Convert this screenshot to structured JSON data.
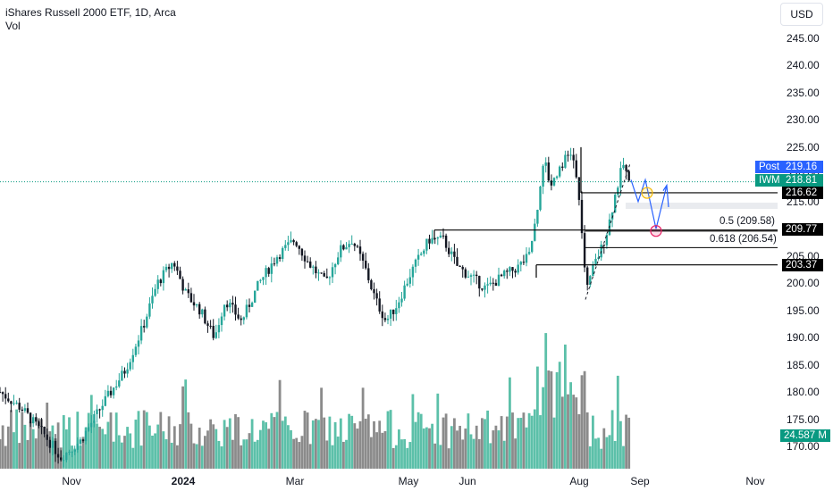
{
  "header": {
    "title": "iShares Russell 2000 ETF, 1D, Arca",
    "indicator": "Vol"
  },
  "currency_button": "USD",
  "yaxis": {
    "ticks": [
      "245.00",
      "240.00",
      "235.00",
      "230.00",
      "225.00",
      "220.00",
      "215.00",
      "210.00",
      "205.00",
      "200.00",
      "195.00",
      "190.00",
      "185.00",
      "180.00",
      "175.00",
      "170.00"
    ]
  },
  "xaxis": {
    "labels": [
      {
        "text": "Nov",
        "bold": false
      },
      {
        "text": "2024",
        "bold": true
      },
      {
        "text": "Mar",
        "bold": false
      },
      {
        "text": "May",
        "bold": false
      },
      {
        "text": "Jun",
        "bold": false
      },
      {
        "text": "Aug",
        "bold": false
      },
      {
        "text": "Sep",
        "bold": false
      },
      {
        "text": "Nov",
        "bold": false
      }
    ]
  },
  "price_tags": {
    "post_label": "Post",
    "post_value": "219.16",
    "ticker_label": "IWM",
    "ticker_value": "218.81",
    "level_1": "216.62",
    "level_2": "209.77",
    "level_3": "203.37",
    "volume": "24.587 M"
  },
  "fib_labels": {
    "fib_05": "0.5 (209.58)",
    "fib_0618": "0.618 (206.54)"
  },
  "colors": {
    "up": "#26a69a",
    "down": "#131722",
    "post": "#2962ff",
    "ticker": "#089981",
    "level": "#000000",
    "vol_up": "#5cc0a9",
    "vol_down": "#8b8b8b"
  },
  "chart_data": {
    "type": "candlestick",
    "title": "iShares Russell 2000 ETF, 1D, Arca",
    "ylim": [
      168,
      247
    ],
    "x_labels": [
      "Nov",
      "2024",
      "Mar",
      "May",
      "Jun",
      "Aug",
      "Sep",
      "Nov"
    ],
    "anchors": [
      {
        "t": 0,
        "v": 180
      },
      {
        "t": 12,
        "v": 177
      },
      {
        "t": 25,
        "v": 172
      },
      {
        "t": 34,
        "v": 168
      },
      {
        "t": 45,
        "v": 171
      },
      {
        "t": 58,
        "v": 178
      },
      {
        "t": 70,
        "v": 184
      },
      {
        "t": 80,
        "v": 192
      },
      {
        "t": 88,
        "v": 200
      },
      {
        "t": 97,
        "v": 204
      },
      {
        "t": 104,
        "v": 198
      },
      {
        "t": 112,
        "v": 195
      },
      {
        "t": 120,
        "v": 190
      },
      {
        "t": 126,
        "v": 197
      },
      {
        "t": 135,
        "v": 193
      },
      {
        "t": 145,
        "v": 200
      },
      {
        "t": 155,
        "v": 205
      },
      {
        "t": 165,
        "v": 208
      },
      {
        "t": 172,
        "v": 204
      },
      {
        "t": 182,
        "v": 200
      },
      {
        "t": 190,
        "v": 206
      },
      {
        "t": 197,
        "v": 208
      },
      {
        "t": 204,
        "v": 203
      },
      {
        "t": 210,
        "v": 197
      },
      {
        "t": 216,
        "v": 193
      },
      {
        "t": 222,
        "v": 196
      },
      {
        "t": 230,
        "v": 202
      },
      {
        "t": 240,
        "v": 208
      },
      {
        "t": 248,
        "v": 208
      },
      {
        "t": 256,
        "v": 203
      },
      {
        "t": 264,
        "v": 201
      },
      {
        "t": 272,
        "v": 199
      },
      {
        "t": 280,
        "v": 201
      },
      {
        "t": 290,
        "v": 203
      },
      {
        "t": 296,
        "v": 205
      },
      {
        "t": 300,
        "v": 212
      },
      {
        "t": 304,
        "v": 223
      },
      {
        "t": 308,
        "v": 218
      },
      {
        "t": 314,
        "v": 222
      },
      {
        "t": 320,
        "v": 224
      },
      {
        "t": 323,
        "v": 218
      },
      {
        "t": 326,
        "v": 208
      },
      {
        "t": 328,
        "v": 198
      },
      {
        "t": 332,
        "v": 203
      },
      {
        "t": 336,
        "v": 206
      },
      {
        "t": 340,
        "v": 210
      },
      {
        "t": 344,
        "v": 216
      },
      {
        "t": 347,
        "v": 220
      },
      {
        "t": 349,
        "v": 222
      },
      {
        "t": 352,
        "v": 218
      }
    ],
    "levels": [
      216.62,
      209.77,
      203.37
    ],
    "fibs": [
      {
        "label": "0.5",
        "value": 209.58
      },
      {
        "label": "0.618",
        "value": 206.54
      }
    ],
    "last_price": 218.81,
    "post_price": 219.16,
    "last_volume": "24.587 M"
  }
}
